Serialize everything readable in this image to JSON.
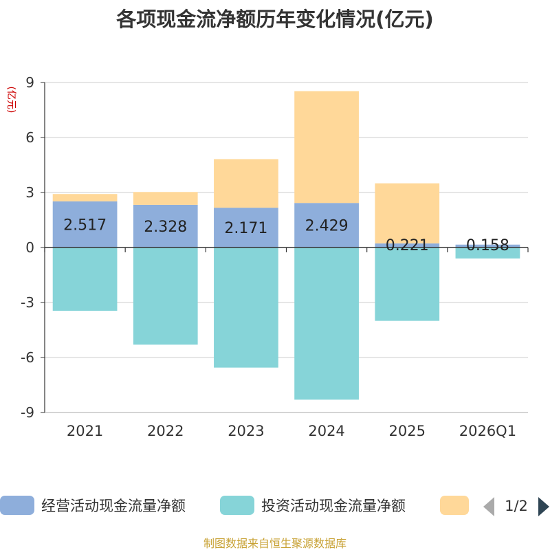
{
  "chart_data": {
    "type": "bar",
    "stacked": true,
    "title": "各项现金流净额历年变化情况(亿元)",
    "ylabel": "(亿元)",
    "categories": [
      "2021",
      "2022",
      "2023",
      "2024",
      "2025",
      "2026Q1"
    ],
    "ylim": [
      -9,
      9
    ],
    "yticks": [
      "9",
      "6",
      "3",
      "0",
      "-3",
      "-6",
      "-9"
    ],
    "grid": true,
    "legend_position": "bottom",
    "series": [
      {
        "name": "经营活动现金流量净额",
        "color": "#8eaedb",
        "values": [
          2.517,
          2.328,
          2.171,
          2.429,
          0.221,
          0.158
        ],
        "labels": [
          "2.517",
          "2.328",
          "2.171",
          "2.429",
          "0.221",
          "0.158"
        ]
      },
      {
        "name": "投资活动现金流量净额",
        "color": "#86d4d8",
        "values": [
          -3.45,
          -5.3,
          -6.55,
          -8.3,
          -4.0,
          -0.6
        ]
      },
      {
        "name": "",
        "color": "#ffd899",
        "values": [
          0.4,
          0.7,
          2.65,
          6.1,
          3.28,
          0
        ]
      }
    ],
    "pager": "1/2",
    "source": "制图数据来自恒生聚源数据库"
  }
}
